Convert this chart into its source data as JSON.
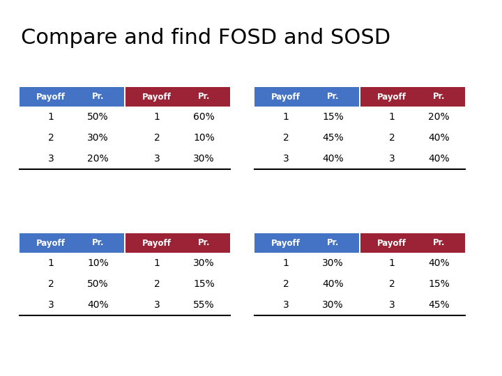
{
  "title": "Compare and find FOSD and SOSD",
  "title_fontsize": 22,
  "bg_color": "#ffffff",
  "blue_header_color": "#4472C4",
  "red_header_color": "#9B2335",
  "header_text_color": "#ffffff",
  "body_text_color": "#000000",
  "tables": [
    {
      "col": 0,
      "row": 0,
      "header_color": "#4472C4",
      "payoffs": [
        "1",
        "2",
        "3"
      ],
      "probs": [
        "50%",
        "30%",
        "20%"
      ]
    },
    {
      "col": 1,
      "row": 0,
      "header_color": "#9B2335",
      "payoffs": [
        "1",
        "2",
        "3"
      ],
      "probs": [
        "60%",
        "10%",
        "30%"
      ]
    },
    {
      "col": 2,
      "row": 0,
      "header_color": "#4472C4",
      "payoffs": [
        "1",
        "2",
        "3"
      ],
      "probs": [
        "15%",
        "45%",
        "40%"
      ]
    },
    {
      "col": 3,
      "row": 0,
      "header_color": "#9B2335",
      "payoffs": [
        "1",
        "2",
        "3"
      ],
      "probs": [
        "20%",
        "40%",
        "40%"
      ]
    },
    {
      "col": 0,
      "row": 1,
      "header_color": "#4472C4",
      "payoffs": [
        "1",
        "2",
        "3"
      ],
      "probs": [
        "10%",
        "50%",
        "40%"
      ]
    },
    {
      "col": 1,
      "row": 1,
      "header_color": "#9B2335",
      "payoffs": [
        "1",
        "2",
        "3"
      ],
      "probs": [
        "30%",
        "15%",
        "55%"
      ]
    },
    {
      "col": 2,
      "row": 1,
      "header_color": "#4472C4",
      "payoffs": [
        "1",
        "2",
        "3"
      ],
      "probs": [
        "30%",
        "40%",
        "30%"
      ]
    },
    {
      "col": 3,
      "row": 1,
      "header_color": "#9B2335",
      "payoffs": [
        "1",
        "2",
        "3"
      ],
      "probs": [
        "40%",
        "15%",
        "45%"
      ]
    }
  ]
}
